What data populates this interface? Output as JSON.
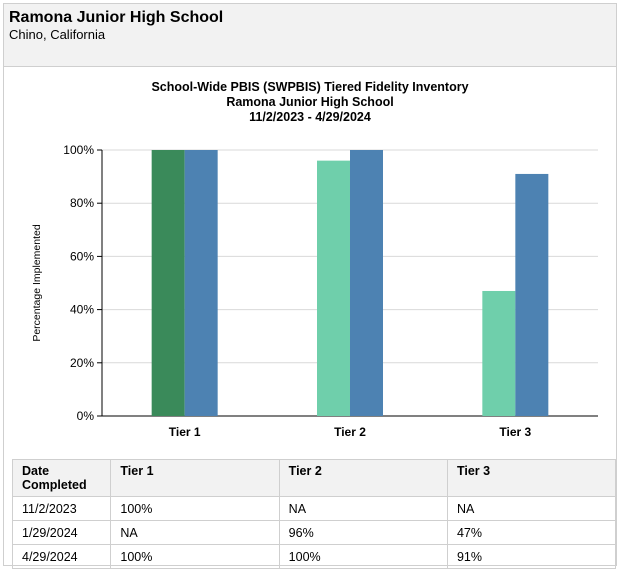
{
  "header": {
    "school_name": "Ramona Junior High School",
    "location": "Chino, California"
  },
  "chart_data": {
    "type": "bar",
    "title": "School-Wide PBIS (SWPBIS) Tiered Fidelity Inventory",
    "subtitle": "Ramona Junior High School",
    "date_range": "11/2/2023 - 4/29/2024",
    "ylabel": "Percentage Implemented",
    "ylim": [
      0,
      100
    ],
    "yticks": [
      "0%",
      "20%",
      "40%",
      "60%",
      "80%",
      "100%"
    ],
    "grid": true,
    "categories": [
      "Tier 1",
      "Tier 2",
      "Tier 3"
    ],
    "series": [
      {
        "date": "11/2/2023",
        "values": [
          100,
          null,
          null
        ],
        "colors": [
          "#3a8a5a",
          "#3a8a5a",
          "#3a8a5a"
        ]
      },
      {
        "date": "1/29/2024",
        "values": [
          null,
          96,
          47
        ],
        "colors": [
          "#6fcfab",
          "#6fcfab",
          "#6fcfab"
        ]
      },
      {
        "date": "4/29/2024",
        "values": [
          100,
          100,
          91
        ],
        "colors": [
          "#4d82b2",
          "#4d82b2",
          "#4d82b2"
        ]
      }
    ]
  },
  "table": {
    "headers": [
      "Date Completed",
      "Tier 1",
      "Tier 2",
      "Tier 3"
    ],
    "rows": [
      [
        "11/2/2023",
        "100%",
        "NA",
        "NA"
      ],
      [
        "1/29/2024",
        "NA",
        "96%",
        "47%"
      ],
      [
        "4/29/2024",
        "100%",
        "100%",
        "91%"
      ]
    ]
  }
}
